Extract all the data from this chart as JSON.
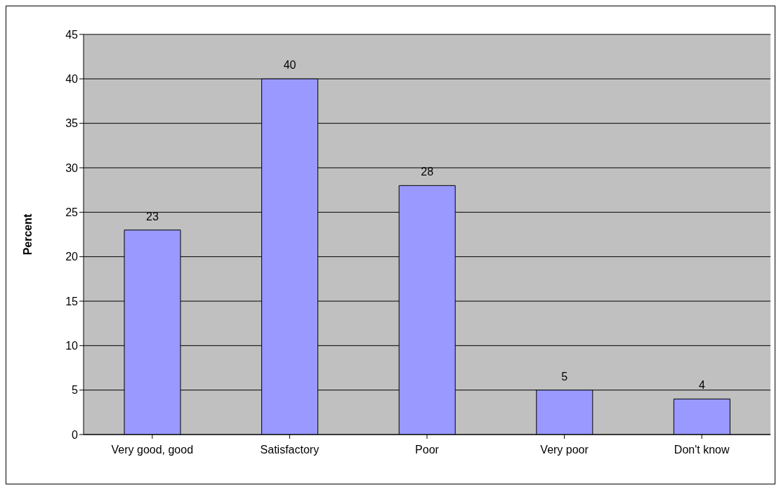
{
  "chart_data": {
    "type": "bar",
    "ylabel": "Percent",
    "categories": [
      "Very good, good",
      "Satisfactory",
      "Poor",
      "Very poor",
      "Don't know"
    ],
    "values": [
      23,
      40,
      28,
      5,
      4
    ],
    "color": "#9999ff",
    "ylim": [
      0,
      45
    ],
    "yticks": [
      0,
      5,
      10,
      15,
      20,
      25,
      30,
      35,
      40,
      45
    ],
    "grid": "y",
    "data_labels": true
  }
}
